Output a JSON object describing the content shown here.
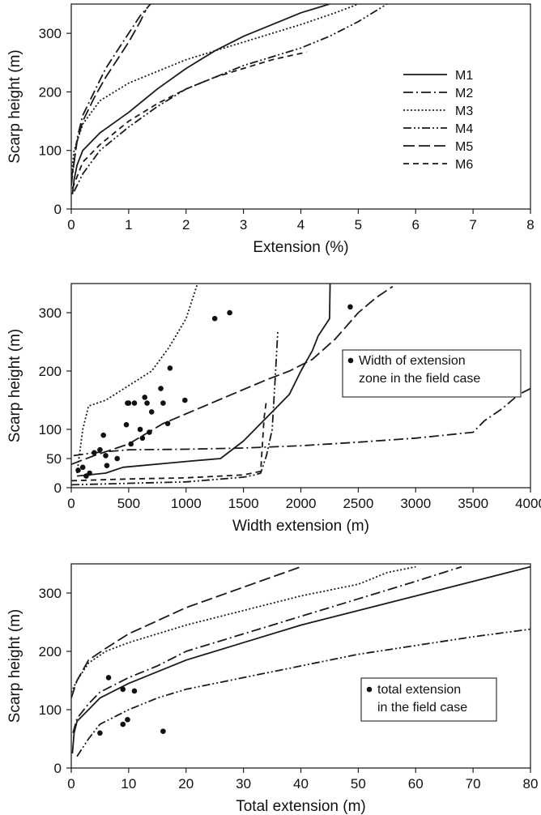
{
  "chart_data": [
    {
      "type": "line",
      "xlabel": "Extension (%)",
      "ylabel": "Scarp  height  (m)",
      "xlim": [
        0,
        8
      ],
      "ylim": [
        0,
        350
      ],
      "xticks": [
        "0",
        "1",
        "2",
        "3",
        "4",
        "5",
        "6",
        "7",
        "8"
      ],
      "yticks": [
        "0",
        "100",
        "200",
        "300"
      ],
      "legend": {
        "placement": "right",
        "entries": [
          "M1",
          "M2",
          "M3",
          "M4",
          "M5",
          "M6"
        ]
      },
      "series": [
        {
          "name": "M1",
          "dash": "solid",
          "points": [
            [
              0.02,
              25
            ],
            [
              0.05,
              50
            ],
            [
              0.1,
              75
            ],
            [
              0.2,
              100
            ],
            [
              0.5,
              130
            ],
            [
              1.0,
              165
            ],
            [
              1.5,
              205
            ],
            [
              2.0,
              240
            ],
            [
              2.5,
              270
            ],
            [
              3.0,
              295
            ],
            [
              3.5,
              315
            ],
            [
              4.0,
              335
            ],
            [
              4.5,
              350
            ]
          ]
        },
        {
          "name": "M2",
          "dash": "longdash-dot",
          "points": [
            [
              0.0,
              40
            ],
            [
              0.05,
              80
            ],
            [
              0.1,
              120
            ],
            [
              0.2,
              160
            ],
            [
              0.4,
              200
            ],
            [
              0.6,
              240
            ],
            [
              0.8,
              270
            ],
            [
              1.0,
              300
            ],
            [
              1.2,
              330
            ],
            [
              1.38,
              350
            ]
          ]
        },
        {
          "name": "M3",
          "dash": "dotted",
          "points": [
            [
              0.0,
              60
            ],
            [
              0.05,
              100
            ],
            [
              0.2,
              145
            ],
            [
              0.5,
              185
            ],
            [
              1.0,
              215
            ],
            [
              1.5,
              235
            ],
            [
              2.0,
              255
            ],
            [
              2.5,
              270
            ],
            [
              3.0,
              285
            ],
            [
              3.5,
              300
            ],
            [
              4.0,
              315
            ],
            [
              4.6,
              335
            ],
            [
              5.0,
              350
            ]
          ]
        },
        {
          "name": "M4",
          "dash": "dash-dot-dot",
          "points": [
            [
              0.05,
              30
            ],
            [
              0.2,
              60
            ],
            [
              0.5,
              100
            ],
            [
              1.0,
              140
            ],
            [
              1.5,
              175
            ],
            [
              2.0,
              205
            ],
            [
              2.5,
              225
            ],
            [
              3.0,
              245
            ],
            [
              3.5,
              260
            ],
            [
              4.0,
              275
            ],
            [
              4.5,
              295
            ],
            [
              5.0,
              320
            ],
            [
              5.5,
              350
            ]
          ]
        },
        {
          "name": "M5",
          "dash": "longdash",
          "points": [
            [
              0.0,
              50
            ],
            [
              0.05,
              80
            ],
            [
              0.1,
              115
            ],
            [
              0.2,
              150
            ],
            [
              0.4,
              190
            ],
            [
              0.6,
              225
            ],
            [
              0.8,
              255
            ],
            [
              1.0,
              285
            ],
            [
              1.2,
              320
            ],
            [
              1.3,
              340
            ]
          ]
        },
        {
          "name": "M6",
          "dash": "dashed",
          "points": [
            [
              0.02,
              35
            ],
            [
              0.2,
              80
            ],
            [
              0.5,
              110
            ],
            [
              1.0,
              150
            ],
            [
              1.5,
              180
            ],
            [
              2.0,
              205
            ],
            [
              2.5,
              225
            ],
            [
              3.0,
              240
            ],
            [
              3.5,
              255
            ],
            [
              4.1,
              268
            ]
          ]
        }
      ]
    },
    {
      "type": "line",
      "xlabel": "Width extension (m)",
      "ylabel": "Scarp  height  (m)",
      "xlim": [
        0,
        4000
      ],
      "ylim": [
        0,
        350
      ],
      "xticks": [
        "0",
        "500",
        "1000",
        "1500",
        "2000",
        "2500",
        "3000",
        "3500",
        "4000"
      ],
      "yticks": [
        "0",
        "50",
        "100",
        "200",
        "300"
      ],
      "legend": {
        "placement": "right",
        "entries": [
          "Width of extension",
          "zone in the field case"
        ]
      },
      "series": [
        {
          "name": "M1",
          "dash": "solid",
          "points": [
            [
              50,
              20
            ],
            [
              300,
              25
            ],
            [
              450,
              35
            ],
            [
              1000,
              45
            ],
            [
              1300,
              50
            ],
            [
              1500,
              80
            ],
            [
              1650,
              110
            ],
            [
              1750,
              130
            ],
            [
              1900,
              160
            ],
            [
              2000,
              200
            ],
            [
              2100,
              235
            ],
            [
              2150,
              260
            ],
            [
              2200,
              275
            ],
            [
              2250,
              290
            ],
            [
              2255,
              350
            ]
          ]
        },
        {
          "name": "M2",
          "dash": "longdash-dot",
          "points": [
            [
              20,
              55
            ],
            [
              200,
              60
            ],
            [
              500,
              65
            ],
            [
              1000,
              66
            ],
            [
              1500,
              68
            ],
            [
              2000,
              72
            ],
            [
              2500,
              78
            ],
            [
              3000,
              85
            ],
            [
              3500,
              95
            ],
            [
              3600,
              115
            ],
            [
              3750,
              135
            ],
            [
              3900,
              160
            ],
            [
              4000,
              170
            ]
          ]
        },
        {
          "name": "M3",
          "dash": "dotted",
          "points": [
            [
              50,
              25
            ],
            [
              100,
              100
            ],
            [
              150,
              140
            ],
            [
              300,
              150
            ],
            [
              500,
              175
            ],
            [
              700,
              200
            ],
            [
              850,
              240
            ],
            [
              1000,
              290
            ],
            [
              1050,
              320
            ],
            [
              1100,
              350
            ]
          ]
        },
        {
          "name": "M4",
          "dash": "dash-dot-dot",
          "points": [
            [
              0,
              5
            ],
            [
              1000,
              10
            ],
            [
              1500,
              18
            ],
            [
              1600,
              22
            ],
            [
              1650,
              25
            ],
            [
              1700,
              55
            ],
            [
              1750,
              100
            ],
            [
              1780,
              200
            ],
            [
              1800,
              270
            ]
          ]
        },
        {
          "name": "M5",
          "dash": "longdash",
          "points": [
            [
              0,
              40
            ],
            [
              200,
              55
            ],
            [
              500,
              75
            ],
            [
              800,
              110
            ],
            [
              1100,
              135
            ],
            [
              1400,
              160
            ],
            [
              1700,
              185
            ],
            [
              1900,
              200
            ],
            [
              2100,
              220
            ],
            [
              2300,
              255
            ],
            [
              2500,
              300
            ],
            [
              2650,
              325
            ],
            [
              2800,
              345
            ]
          ]
        },
        {
          "name": "M6",
          "dash": "dashed",
          "points": [
            [
              0,
              12
            ],
            [
              500,
              15
            ],
            [
              1000,
              17
            ],
            [
              1500,
              22
            ],
            [
              1650,
              28
            ],
            [
              1680,
              120
            ],
            [
              1700,
              150
            ]
          ]
        },
        {
          "name": "Width of extension zone in the field case",
          "marker": "dot",
          "points": [
            [
              60,
              30
            ],
            [
              100,
              35
            ],
            [
              130,
              20
            ],
            [
              160,
              25
            ],
            [
              200,
              60
            ],
            [
              250,
              65
            ],
            [
              280,
              90
            ],
            [
              300,
              55
            ],
            [
              310,
              38
            ],
            [
              400,
              50
            ],
            [
              480,
              108
            ],
            [
              490,
              145
            ],
            [
              500,
              145
            ],
            [
              520,
              75
            ],
            [
              550,
              145
            ],
            [
              600,
              100
            ],
            [
              620,
              85
            ],
            [
              640,
              155
            ],
            [
              660,
              145
            ],
            [
              680,
              95
            ],
            [
              700,
              130
            ],
            [
              780,
              170
            ],
            [
              800,
              145
            ],
            [
              840,
              110
            ],
            [
              860,
              205
            ],
            [
              990,
              150
            ],
            [
              1250,
              290
            ],
            [
              1380,
              300
            ],
            [
              2430,
              310
            ]
          ]
        }
      ]
    },
    {
      "type": "line",
      "xlabel": "Total extension (m)",
      "ylabel": "Scarp  height  (m)",
      "xlim": [
        0,
        80
      ],
      "ylim": [
        0,
        350
      ],
      "xticks": [
        "0",
        "10",
        "20",
        "30",
        "40",
        "50",
        "60",
        "70",
        "80"
      ],
      "yticks": [
        "0",
        "100",
        "200",
        "300"
      ],
      "legend": {
        "placement": "right",
        "entries": [
          "total extension",
          "in the field case"
        ]
      },
      "series": [
        {
          "name": "M1",
          "dash": "solid",
          "points": [
            [
              0.2,
              25
            ],
            [
              0.5,
              60
            ],
            [
              1,
              80
            ],
            [
              3,
              100
            ],
            [
              5,
              120
            ],
            [
              10,
              145
            ],
            [
              15,
              165
            ],
            [
              20,
              185
            ],
            [
              30,
              215
            ],
            [
              40,
              245
            ],
            [
              50,
              270
            ],
            [
              60,
              295
            ],
            [
              70,
              320
            ],
            [
              80,
              345
            ]
          ]
        },
        {
          "name": "M2",
          "dash": "longdash-dot",
          "points": [
            [
              0.3,
              60
            ],
            [
              1,
              85
            ],
            [
              3,
              110
            ],
            [
              5,
              130
            ],
            [
              10,
              155
            ],
            [
              15,
              175
            ],
            [
              20,
              200
            ],
            [
              30,
              230
            ],
            [
              40,
              260
            ],
            [
              50,
              290
            ],
            [
              60,
              320
            ],
            [
              68,
              345
            ]
          ]
        },
        {
          "name": "M3",
          "dash": "dotted",
          "points": [
            [
              0,
              130
            ],
            [
              1,
              150
            ],
            [
              3,
              180
            ],
            [
              6,
              200
            ],
            [
              10,
              215
            ],
            [
              20,
              245
            ],
            [
              30,
              270
            ],
            [
              40,
              295
            ],
            [
              50,
              315
            ],
            [
              55,
              335
            ],
            [
              60,
              345
            ]
          ]
        },
        {
          "name": "M4",
          "dash": "dash-dot-dot",
          "points": [
            [
              1,
              20
            ],
            [
              3,
              50
            ],
            [
              5,
              75
            ],
            [
              10,
              100
            ],
            [
              15,
              120
            ],
            [
              20,
              135
            ],
            [
              30,
              155
            ],
            [
              40,
              175
            ],
            [
              50,
              195
            ],
            [
              60,
              210
            ],
            [
              70,
              225
            ],
            [
              80,
              238
            ]
          ]
        },
        {
          "name": "M5",
          "dash": "longdash",
          "points": [
            [
              0,
              120
            ],
            [
              1,
              150
            ],
            [
              3,
              185
            ],
            [
              6,
              205
            ],
            [
              10,
              230
            ],
            [
              20,
              275
            ],
            [
              30,
              310
            ],
            [
              40,
              345
            ]
          ]
        },
        {
          "name": "total extension in the field case",
          "marker": "dot",
          "points": [
            [
              5,
              60
            ],
            [
              6.5,
              155
            ],
            [
              9,
              75
            ],
            [
              9,
              135
            ],
            [
              9.8,
              83
            ],
            [
              11,
              132
            ],
            [
              16,
              63
            ]
          ]
        }
      ]
    }
  ]
}
